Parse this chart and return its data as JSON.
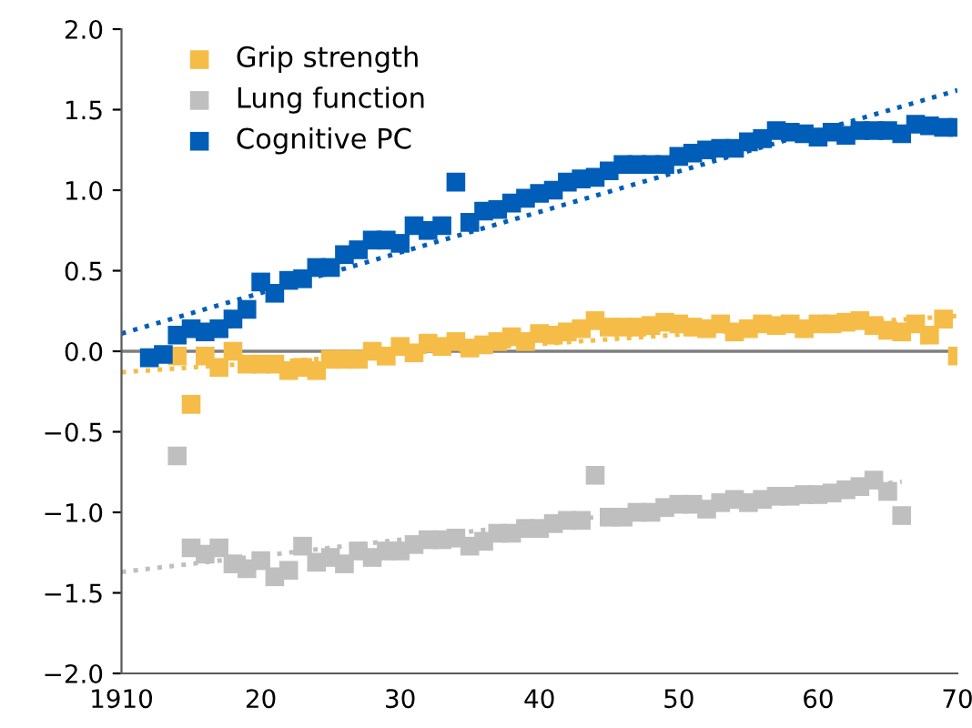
{
  "chart_data": {
    "type": "scatter",
    "marker": "square",
    "legend": "top left",
    "grid": false,
    "xlim": [
      1910,
      1970
    ],
    "xticks": [
      1910,
      {
        "value": 1920,
        "label": "20"
      },
      {
        "value": 1930,
        "label": "30"
      },
      {
        "value": 1940,
        "label": "40"
      },
      {
        "value": 1950,
        "label": "50"
      },
      {
        "value": 1960,
        "label": "60"
      },
      {
        "value": 1970,
        "label": "70"
      }
    ],
    "ylim": [
      -2.0,
      2.0
    ],
    "yticks": [
      {
        "value": -2,
        "label": "−2.0"
      },
      {
        "value": -1.5,
        "label": "−1.5"
      },
      {
        "value": -1,
        "label": "−1.0"
      },
      {
        "value": -0.5,
        "label": "−0.5"
      },
      {
        "value": 0,
        "label": "0.0"
      },
      {
        "value": 0.5,
        "label": "0.5"
      },
      {
        "value": 1,
        "label": "1.0"
      },
      {
        "value": 1.5,
        "label": "1.5"
      },
      {
        "value": 2,
        "label": "2.0"
      }
    ],
    "ref_lines": [
      {
        "axis": "y",
        "value": 0,
        "color": "#7f7f7f"
      }
    ],
    "series": [
      {
        "name": "Grip strength",
        "color": "#f5bd48",
        "x": [
          1914,
          1915,
          1916,
          1917,
          1918,
          1919,
          1920,
          1921,
          1922,
          1923,
          1924,
          1925,
          1926,
          1927,
          1928,
          1929,
          1930,
          1931,
          1932,
          1933,
          1934,
          1935,
          1936,
          1937,
          1938,
          1939,
          1940,
          1941,
          1942,
          1943,
          1944,
          1945,
          1946,
          1947,
          1948,
          1949,
          1950,
          1951,
          1952,
          1953,
          1954,
          1955,
          1956,
          1957,
          1958,
          1959,
          1960,
          1961,
          1962,
          1963,
          1964,
          1965,
          1966,
          1967,
          1968,
          1969,
          1970
        ],
        "values": [
          -0.03,
          -0.33,
          -0.03,
          -0.1,
          0.0,
          -0.08,
          -0.08,
          -0.08,
          -0.12,
          -0.1,
          -0.12,
          -0.05,
          -0.05,
          -0.05,
          0.0,
          -0.03,
          0.03,
          -0.01,
          0.05,
          0.03,
          0.06,
          0.02,
          0.04,
          0.06,
          0.09,
          0.06,
          0.11,
          0.1,
          0.12,
          0.14,
          0.19,
          0.15,
          0.15,
          0.15,
          0.16,
          0.18,
          0.17,
          0.15,
          0.14,
          0.17,
          0.12,
          0.14,
          0.17,
          0.16,
          0.17,
          0.14,
          0.17,
          0.17,
          0.18,
          0.19,
          0.16,
          0.13,
          0.12,
          0.17,
          0.1,
          0.2,
          -0.03
        ]
      },
      {
        "name": "Lung function",
        "color": "#bfbfbf",
        "x": [
          1914,
          1915,
          1916,
          1917,
          1918,
          1919,
          1920,
          1921,
          1922,
          1923,
          1924,
          1925,
          1926,
          1927,
          1928,
          1929,
          1930,
          1931,
          1932,
          1933,
          1934,
          1935,
          1936,
          1937,
          1938,
          1939,
          1940,
          1941,
          1942,
          1943,
          1944,
          1945,
          1946,
          1947,
          1948,
          1949,
          1950,
          1951,
          1952,
          1953,
          1954,
          1955,
          1956,
          1957,
          1958,
          1959,
          1960,
          1961,
          1962,
          1963,
          1964,
          1965,
          1966
        ],
        "values": [
          -0.65,
          -1.22,
          -1.26,
          -1.22,
          -1.32,
          -1.35,
          -1.3,
          -1.4,
          -1.36,
          -1.21,
          -1.31,
          -1.28,
          -1.32,
          -1.24,
          -1.28,
          -1.24,
          -1.24,
          -1.2,
          -1.17,
          -1.17,
          -1.16,
          -1.21,
          -1.18,
          -1.13,
          -1.13,
          -1.1,
          -1.1,
          -1.07,
          -1.05,
          -1.05,
          -0.77,
          -1.03,
          -1.03,
          -1.0,
          -1.0,
          -0.97,
          -0.95,
          -0.95,
          -0.98,
          -0.94,
          -0.92,
          -0.94,
          -0.92,
          -0.9,
          -0.9,
          -0.89,
          -0.89,
          -0.88,
          -0.86,
          -0.84,
          -0.8,
          -0.87,
          -1.02
        ]
      },
      {
        "name": "Cognitive PC",
        "color": "#005eb8",
        "x": [
          1912,
          1913,
          1914,
          1915,
          1916,
          1917,
          1918,
          1919,
          1920,
          1921,
          1922,
          1923,
          1924,
          1925,
          1926,
          1927,
          1928,
          1929,
          1930,
          1931,
          1932,
          1933,
          1934,
          1935,
          1936,
          1937,
          1938,
          1939,
          1940,
          1941,
          1942,
          1943,
          1944,
          1945,
          1946,
          1947,
          1948,
          1949,
          1950,
          1951,
          1952,
          1953,
          1954,
          1955,
          1956,
          1957,
          1958,
          1959,
          1960,
          1961,
          1962,
          1963,
          1964,
          1965,
          1966,
          1967,
          1968,
          1969,
          1970
        ],
        "values": [
          -0.04,
          -0.02,
          0.1,
          0.14,
          0.12,
          0.14,
          0.2,
          0.26,
          0.43,
          0.36,
          0.44,
          0.45,
          0.52,
          0.52,
          0.6,
          0.63,
          0.69,
          0.69,
          0.67,
          0.78,
          0.75,
          0.78,
          1.05,
          0.8,
          0.87,
          0.88,
          0.92,
          0.95,
          0.98,
          1.0,
          1.05,
          1.07,
          1.08,
          1.12,
          1.16,
          1.16,
          1.16,
          1.16,
          1.21,
          1.23,
          1.25,
          1.26,
          1.26,
          1.3,
          1.32,
          1.37,
          1.36,
          1.35,
          1.33,
          1.36,
          1.34,
          1.37,
          1.37,
          1.37,
          1.35,
          1.41,
          1.4,
          1.39,
          1.39
        ]
      },
      {
        "type": "line",
        "marker": "none",
        "line_style": "dotted",
        "color": "#f5bd48",
        "x": [
          1910,
          1970
        ],
        "values": [
          -0.13,
          0.22
        ]
      },
      {
        "type": "line",
        "marker": "none",
        "line_style": "dotted",
        "color": "#bfbfbf",
        "x": [
          1910,
          1966
        ],
        "values": [
          -1.37,
          -0.81
        ]
      },
      {
        "type": "line",
        "marker": "none",
        "line_style": "dotted",
        "color": "#005eb8",
        "x": [
          1910,
          1970
        ],
        "values": [
          0.11,
          1.62
        ]
      }
    ]
  }
}
